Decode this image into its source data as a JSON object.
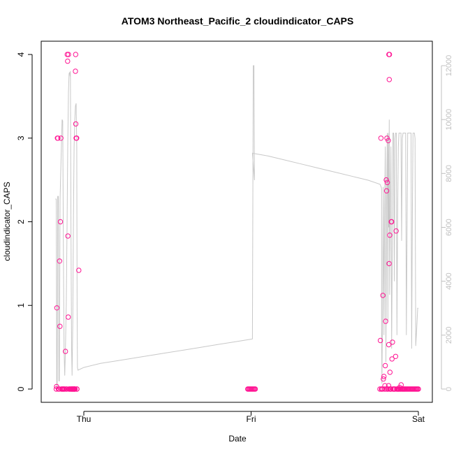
{
  "chart_data": {
    "type": "scatter",
    "title": "ATOM3 Northeast_Pacific_2 cloudindicator_CAPS",
    "xlabel": "Date",
    "ylabel": "cloudindicator_CAPS",
    "x_ticks": [
      "Thu",
      "Fri",
      "Sat"
    ],
    "xlim": [
      -0.2,
      2.0
    ],
    "ylim": [
      0,
      4
    ],
    "y_ticks": [
      "0",
      "1",
      "2",
      "3",
      "4"
    ],
    "y2lim": [
      0,
      12000
    ],
    "y2_ticks": [
      "0",
      "2000",
      "4000",
      "6000",
      "8000",
      "10000",
      "12000"
    ],
    "colors": {
      "points": "#ff1493",
      "line": "#c8c8c8",
      "axis": "#000000",
      "axis2": "#c0c0c0"
    },
    "series": [
      {
        "type": "scatter",
        "points": [
          [
            -0.165,
            0.0
          ],
          [
            -0.163,
            0.03
          ],
          [
            -0.161,
            0.97
          ],
          [
            -0.158,
            3.0
          ],
          [
            -0.155,
            3.0
          ],
          [
            -0.152,
            0.0
          ],
          [
            -0.148,
            0.0
          ],
          [
            -0.145,
            1.53
          ],
          [
            -0.143,
            0.75
          ],
          [
            -0.14,
            2.0
          ],
          [
            -0.137,
            3.0
          ],
          [
            -0.134,
            0.0
          ],
          [
            -0.13,
            0.0
          ],
          [
            -0.126,
            0.0
          ],
          [
            -0.122,
            0.0
          ],
          [
            -0.119,
            0.0
          ],
          [
            -0.115,
            0.0
          ],
          [
            -0.11,
            0.45
          ],
          [
            -0.106,
            0.0
          ],
          [
            -0.102,
            0.0
          ],
          [
            -0.099,
            4.0
          ],
          [
            -0.097,
            3.92
          ],
          [
            -0.095,
            1.83
          ],
          [
            -0.093,
            0.86
          ],
          [
            -0.092,
            4.0
          ],
          [
            -0.089,
            0.0
          ],
          [
            -0.085,
            0.0
          ],
          [
            -0.081,
            0.0
          ],
          [
            -0.077,
            0.0
          ],
          [
            -0.074,
            0.0
          ],
          [
            -0.071,
            0.0
          ],
          [
            -0.068,
            0.0
          ],
          [
            -0.066,
            0.0
          ],
          [
            -0.063,
            0.0
          ],
          [
            -0.06,
            0.0
          ],
          [
            -0.058,
            0.0
          ],
          [
            -0.056,
            0.0
          ],
          [
            -0.054,
            0.0
          ],
          [
            -0.052,
            0.0
          ],
          [
            -0.05,
            3.8
          ],
          [
            -0.049,
            4.0
          ],
          [
            -0.048,
            3.17
          ],
          [
            -0.046,
            3.0
          ],
          [
            -0.044,
            3.0
          ],
          [
            -0.043,
            3.0
          ],
          [
            -0.042,
            0.0
          ],
          [
            -0.041,
            0.0
          ],
          [
            -0.03,
            1.42
          ],
          [
            0.98,
            0.0
          ],
          [
            0.985,
            0.0
          ],
          [
            0.99,
            0.0
          ],
          [
            0.995,
            0.0
          ],
          [
            1.0,
            0.0
          ],
          [
            1.005,
            0.0
          ],
          [
            1.01,
            0.0
          ],
          [
            1.015,
            0.0
          ],
          [
            1.02,
            0.0
          ],
          [
            1.025,
            0.0
          ],
          [
            1.77,
            0.0
          ],
          [
            1.773,
            0.58
          ],
          [
            1.776,
            3.0
          ],
          [
            1.779,
            0.0
          ],
          [
            1.782,
            0.0
          ],
          [
            1.785,
            0.0
          ],
          [
            1.788,
            1.12
          ],
          [
            1.791,
            0.12
          ],
          [
            1.794,
            0.15
          ],
          [
            1.797,
            0.0
          ],
          [
            1.8,
            0.04
          ],
          [
            1.802,
            0.28
          ],
          [
            1.804,
            0.81
          ],
          [
            1.806,
            0.0
          ],
          [
            1.808,
            2.5
          ],
          [
            1.81,
            2.37
          ],
          [
            1.812,
            3.0
          ],
          [
            1.814,
            2.47
          ],
          [
            1.816,
            0.0
          ],
          [
            1.818,
            0.0
          ],
          [
            1.82,
            2.97
          ],
          [
            1.822,
            0.04
          ],
          [
            1.823,
            0.53
          ],
          [
            1.824,
            4.0
          ],
          [
            1.825,
            1.5
          ],
          [
            1.826,
            3.7
          ],
          [
            1.827,
            4.0
          ],
          [
            1.828,
            0.0
          ],
          [
            1.829,
            1.84
          ],
          [
            1.83,
            0.2
          ],
          [
            1.832,
            0.0
          ],
          [
            1.834,
            0.0
          ],
          [
            1.836,
            0.0
          ],
          [
            1.838,
            2.0
          ],
          [
            1.84,
            2.0
          ],
          [
            1.842,
            0.36
          ],
          [
            1.845,
            0.56
          ],
          [
            1.848,
            0.0
          ],
          [
            1.852,
            0.0
          ],
          [
            1.856,
            0.0
          ],
          [
            1.86,
            0.0
          ],
          [
            1.864,
            0.39
          ],
          [
            1.867,
            1.89
          ],
          [
            1.87,
            0.0
          ],
          [
            1.874,
            0.0
          ],
          [
            1.878,
            0.0
          ],
          [
            1.882,
            0.0
          ],
          [
            1.885,
            0.0
          ],
          [
            1.888,
            0.02
          ],
          [
            1.891,
            0.0
          ],
          [
            1.894,
            0.0
          ],
          [
            1.897,
            0.05
          ],
          [
            1.9,
            0.0
          ],
          [
            1.904,
            0.0
          ],
          [
            1.908,
            0.0
          ],
          [
            1.912,
            0.0
          ],
          [
            1.916,
            0.0
          ],
          [
            1.92,
            0.0
          ],
          [
            1.925,
            0.0
          ],
          [
            1.93,
            0.0
          ],
          [
            1.935,
            0.0
          ],
          [
            1.94,
            0.0
          ],
          [
            1.945,
            0.0
          ],
          [
            1.95,
            0.0
          ],
          [
            1.955,
            0.0
          ],
          [
            1.96,
            0.0
          ],
          [
            1.965,
            0.0
          ],
          [
            1.97,
            0.0
          ],
          [
            1.975,
            0.0
          ],
          [
            1.98,
            0.0
          ],
          [
            1.985,
            0.0
          ],
          [
            1.99,
            0.0
          ],
          [
            1.995,
            0.0
          ],
          [
            2.0,
            0.0
          ]
        ]
      },
      {
        "type": "line",
        "axis": "right",
        "points": [
          [
            -0.17,
            7050
          ],
          [
            -0.165,
            7050
          ],
          [
            -0.162,
            100
          ],
          [
            -0.159,
            100
          ],
          [
            -0.156,
            7150
          ],
          [
            -0.152,
            7150
          ],
          [
            -0.149,
            300
          ],
          [
            -0.146,
            300
          ],
          [
            -0.142,
            7000
          ],
          [
            -0.138,
            8000
          ],
          [
            -0.134,
            9000
          ],
          [
            -0.13,
            10000
          ],
          [
            -0.126,
            9950
          ],
          [
            -0.122,
            5000
          ],
          [
            -0.118,
            1500
          ],
          [
            -0.114,
            500
          ],
          [
            -0.11,
            1500
          ],
          [
            -0.105,
            3200
          ],
          [
            -0.1,
            6000
          ],
          [
            -0.096,
            9000
          ],
          [
            -0.092,
            11000
          ],
          [
            -0.088,
            11700
          ],
          [
            -0.085,
            11750
          ],
          [
            -0.082,
            11600
          ],
          [
            -0.08,
            11800
          ],
          [
            -0.077,
            6000
          ],
          [
            -0.073,
            1500
          ],
          [
            -0.07,
            500
          ],
          [
            -0.066,
            2500
          ],
          [
            -0.062,
            6500
          ],
          [
            -0.058,
            9000
          ],
          [
            -0.054,
            10000
          ],
          [
            -0.05,
            10500
          ],
          [
            -0.046,
            10600
          ],
          [
            -0.042,
            9000
          ],
          [
            -0.04,
            3000
          ],
          [
            -0.038,
            800
          ],
          [
            -0.035,
            700
          ],
          [
            0.0,
            800
          ],
          [
            0.1,
            950
          ],
          [
            0.2,
            1050
          ],
          [
            0.3,
            1150
          ],
          [
            0.4,
            1250
          ],
          [
            0.5,
            1350
          ],
          [
            0.6,
            1450
          ],
          [
            0.7,
            1550
          ],
          [
            0.8,
            1650
          ],
          [
            0.9,
            1750
          ],
          [
            1.0,
            1850
          ],
          [
            1.008,
            1860
          ],
          [
            1.013,
            12000
          ],
          [
            1.017,
            12000
          ],
          [
            1.02,
            7750
          ],
          [
            1.008,
            8750
          ],
          [
            1.1,
            8650
          ],
          [
            1.2,
            8500
          ],
          [
            1.3,
            8350
          ],
          [
            1.4,
            8200
          ],
          [
            1.5,
            8050
          ],
          [
            1.6,
            7900
          ],
          [
            1.7,
            7750
          ],
          [
            1.77,
            7600
          ],
          [
            1.774,
            7550
          ],
          [
            1.777,
            7500
          ],
          [
            1.78,
            7450
          ],
          [
            1.78,
            2300
          ],
          [
            1.782,
            200
          ],
          [
            1.786,
            3000
          ],
          [
            1.79,
            7500
          ],
          [
            1.794,
            2000
          ],
          [
            1.798,
            6000
          ],
          [
            1.802,
            9000
          ],
          [
            1.806,
            1000
          ],
          [
            1.81,
            7000
          ],
          [
            1.814,
            9500
          ],
          [
            1.818,
            2500
          ],
          [
            1.82,
            9500
          ],
          [
            1.823,
            6000
          ],
          [
            1.826,
            10000
          ],
          [
            1.828,
            3500
          ],
          [
            1.832,
            7000
          ],
          [
            1.836,
            9000
          ],
          [
            1.84,
            1500
          ],
          [
            1.844,
            5000
          ],
          [
            1.848,
            9500
          ],
          [
            1.852,
            9500
          ],
          [
            1.856,
            4000
          ],
          [
            1.86,
            9300
          ],
          [
            1.864,
            9500
          ],
          [
            1.868,
            9500
          ],
          [
            1.872,
            2000
          ],
          [
            1.876,
            6500
          ],
          [
            1.88,
            9000
          ],
          [
            1.884,
            9500
          ],
          [
            1.888,
            9500
          ],
          [
            1.892,
            9500
          ],
          [
            1.896,
            9500
          ],
          [
            1.9,
            5500
          ],
          [
            1.904,
            9300
          ],
          [
            1.908,
            9500
          ],
          [
            1.912,
            9500
          ],
          [
            1.916,
            9500
          ],
          [
            1.92,
            9500
          ],
          [
            1.924,
            9500
          ],
          [
            1.928,
            2000
          ],
          [
            1.932,
            5500
          ],
          [
            1.936,
            9500
          ],
          [
            1.94,
            9500
          ],
          [
            1.944,
            9500
          ],
          [
            1.948,
            9500
          ],
          [
            1.952,
            9500
          ],
          [
            1.956,
            9500
          ],
          [
            1.96,
            1500
          ],
          [
            1.964,
            6500
          ],
          [
            1.968,
            9500
          ],
          [
            1.972,
            9500
          ],
          [
            1.976,
            9500
          ],
          [
            1.98,
            9300
          ],
          [
            1.984,
            1600
          ],
          [
            1.988,
            2000
          ],
          [
            1.992,
            2500
          ],
          [
            1.996,
            3000
          ],
          [
            2.0,
            3000
          ]
        ]
      }
    ],
    "grid": false
  }
}
